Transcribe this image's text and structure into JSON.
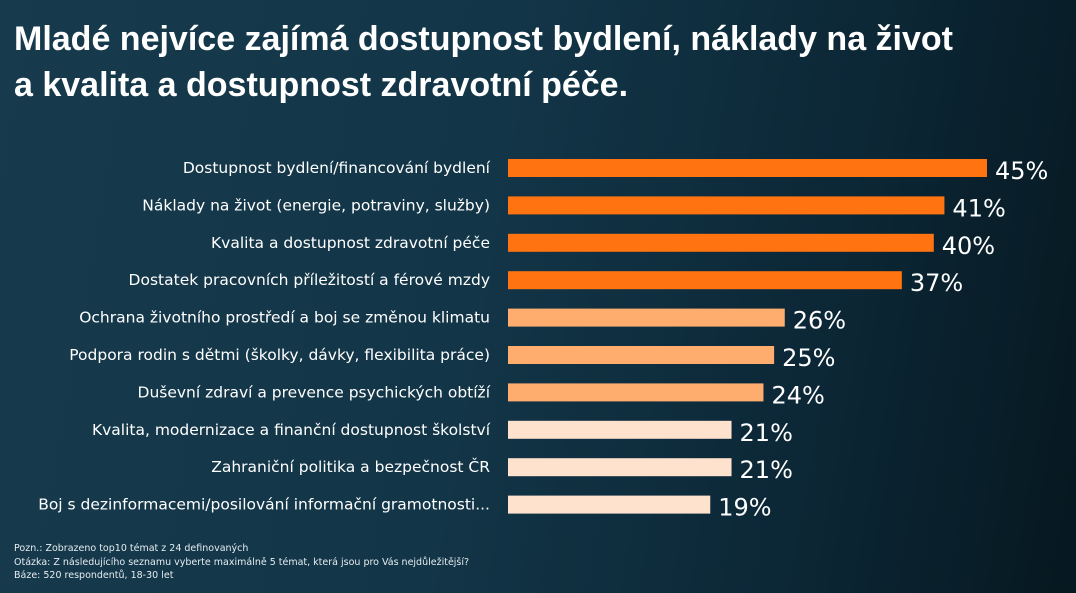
{
  "title_lines": [
    "Mladé nejvíce zajímá dostupnost bydlení, náklady na život",
    "a kvalita a dostupnost  zdravotní péče."
  ],
  "notes": {
    "note": "Pozn.: Zobrazeno top10 témat z  24 definovaných",
    "question": "Otázka:  Z následujícího seznamu vyberte maximálně 5 témat, která jsou pro Vás nejdůležitější?",
    "base": "Báze: 520 respondentů, 18-30 let"
  },
  "colors": {
    "dark_orange": "#ff7410",
    "mid_orange": "#ffad6f",
    "light_peach": "#ffe2cd",
    "text": "#ffffff"
  },
  "chart_data": {
    "type": "bar",
    "orientation": "horizontal",
    "categories": [
      "Dostupnost bydlení/financování bydlení",
      "Náklady na život (energie, potraviny, služby)",
      "Kvalita a dostupnost zdravotní péče",
      "Dostatek pracovních příležitostí a férové mzdy",
      "Ochrana životního prostředí a boj se změnou klimatu",
      "Podpora rodin s dětmi (školky, dávky, flexibilita práce)",
      "Duševní zdraví a prevence psychických obtíží",
      "Kvalita, modernizace a finanční dostupnost školství",
      "Zahraniční politika a bezpečnost ČR",
      "Boj s dezinformacemi/posilování informační gramotnosti..."
    ],
    "values": [
      45,
      41,
      40,
      37,
      26,
      25,
      24,
      21,
      21,
      19
    ],
    "value_labels": [
      "45%",
      "41%",
      "40%",
      "37%",
      "26%",
      "25%",
      "24%",
      "21%",
      "21%",
      "19%"
    ],
    "color_groups": [
      "dark_orange",
      "dark_orange",
      "dark_orange",
      "dark_orange",
      "mid_orange",
      "mid_orange",
      "mid_orange",
      "light_peach",
      "light_peach",
      "light_peach"
    ],
    "xlim": [
      0,
      45
    ],
    "grid": false,
    "legend": "none"
  }
}
